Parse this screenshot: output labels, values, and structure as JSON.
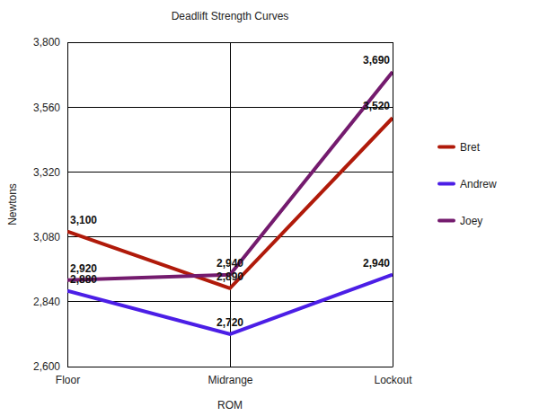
{
  "chart_data": {
    "type": "line",
    "title": "Deadlift Strength Curves",
    "x_label": "ROM",
    "y_label": "Newtons",
    "categories": [
      "Floor",
      "Midrange",
      "Lockout"
    ],
    "series": [
      {
        "name": "Bret",
        "color": "#b01a0a",
        "values": [
          3100,
          2890,
          3520
        ],
        "value_labels": [
          "3,100",
          "2,890",
          "3,520"
        ]
      },
      {
        "name": "Andrew",
        "color": "#4b1ee6",
        "values": [
          2880,
          2720,
          2940
        ],
        "value_labels": [
          "2,880",
          "2,720",
          "2,940"
        ]
      },
      {
        "name": "Joey",
        "color": "#741b6e",
        "values": [
          2920,
          2940,
          3690
        ],
        "value_labels": [
          "2,920",
          "2,940",
          "3,690"
        ]
      }
    ],
    "ylim": [
      2600,
      3800
    ],
    "yticks": [
      {
        "value": 2600,
        "label": "2,600"
      },
      {
        "value": 2840,
        "label": "2,840"
      },
      {
        "value": 3080,
        "label": "3,080"
      },
      {
        "value": 3320,
        "label": "3,320"
      },
      {
        "value": 3560,
        "label": "3,560"
      },
      {
        "value": 3800,
        "label": "3,800"
      }
    ],
    "grid": true,
    "legend": "right",
    "data_labels": true
  }
}
